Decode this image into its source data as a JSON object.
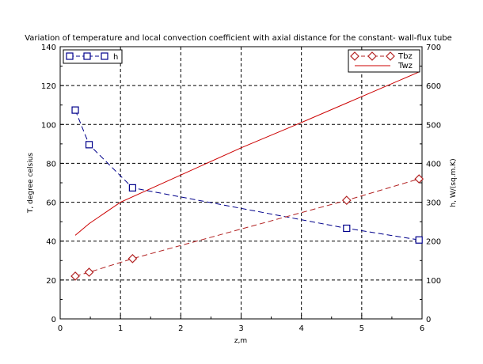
{
  "chart_data": {
    "type": "line",
    "title": "Variation of temperature and local convection coefficient with axial distance for the constant- wall-flux tube",
    "xlabel": "z,m",
    "ylabel_left": "T, degree celsius",
    "ylabel_right": "h, W/(sq.m.K)",
    "xlim": [
      0,
      6
    ],
    "ylim_left": [
      0,
      140
    ],
    "ylim_right": [
      0,
      700
    ],
    "x_ticks": [
      0,
      1,
      2,
      3,
      4,
      5,
      6
    ],
    "y_left_ticks": [
      0,
      20,
      40,
      60,
      80,
      100,
      120,
      140
    ],
    "y_right_ticks": [
      0,
      100,
      200,
      300,
      400,
      500,
      600,
      700
    ],
    "grid": true,
    "series": [
      {
        "name": "h",
        "axis": "right",
        "color": "#00008b",
        "line_style": "dashed",
        "marker": "square",
        "x": [
          0.25,
          0.48,
          1.2,
          4.75,
          5.95
        ],
        "y": [
          537,
          448,
          337,
          233,
          203
        ]
      },
      {
        "name": "Tbz",
        "axis": "left",
        "color": "#b22222",
        "line_style": "dashed",
        "marker": "diamond",
        "x": [
          0.25,
          0.48,
          1.2,
          4.75,
          5.95
        ],
        "y": [
          22,
          24,
          31,
          61,
          72
        ]
      },
      {
        "name": "Twz",
        "axis": "left",
        "color": "#cc0000",
        "line_style": "solid",
        "marker": "none",
        "x": [
          0.25,
          0.48,
          1.0,
          2.0,
          3.0,
          4.0,
          4.75,
          5.95
        ],
        "y": [
          43,
          49,
          60,
          74,
          88,
          101,
          111,
          127
        ]
      }
    ],
    "legends": [
      {
        "position": "top-left",
        "entries": [
          "h"
        ]
      },
      {
        "position": "top-right",
        "entries": [
          "Tbz",
          "Twz"
        ]
      }
    ]
  }
}
